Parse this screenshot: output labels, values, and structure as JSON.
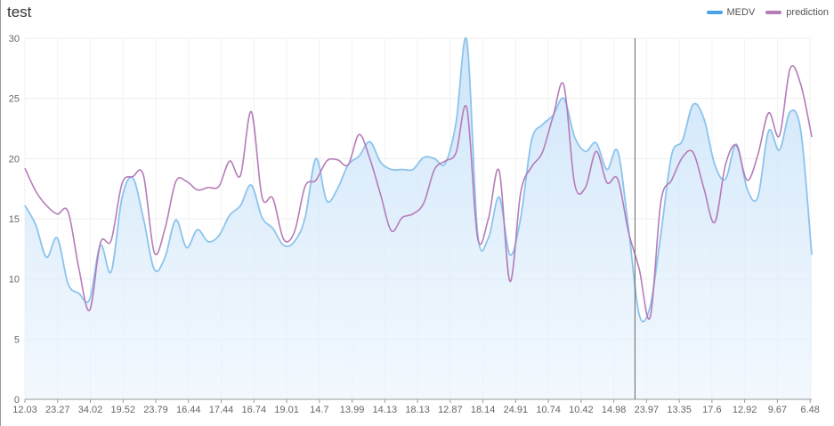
{
  "chart_data": {
    "type": "area",
    "title": "test",
    "xlabel": "",
    "ylabel": "",
    "ylim": [
      0,
      30
    ],
    "yticks": [
      0,
      5,
      10,
      15,
      20,
      25,
      30
    ],
    "grid": true,
    "legend": "top-right",
    "x_tick_labels": [
      "12.03",
      "23.27",
      "34.02",
      "19.52",
      "23.79",
      "16.44",
      "17.44",
      "16.74",
      "19.01",
      "14.7",
      "13.99",
      "14.13",
      "18.13",
      "12.87",
      "18.14",
      "24.91",
      "10.74",
      "10.42",
      "14.98",
      "23.97",
      "13.35",
      "17.6",
      "12.92",
      "9.67",
      "6.48"
    ],
    "colors": {
      "medv": "#4aa3e8",
      "medv_line": "#8cc4ec",
      "medv_fill": "#d6ebfb",
      "prediction": "#b47cb8"
    },
    "series": [
      {
        "name": "MEDV",
        "values": [
          16.1,
          14.5,
          11.8,
          13.4,
          9.6,
          8.8,
          8.3,
          12.8,
          10.6,
          16.7,
          18.4,
          15.0,
          10.8,
          11.8,
          14.9,
          12.6,
          14.1,
          13.1,
          13.6,
          15.3,
          16.1,
          17.8,
          15.1,
          14.2,
          12.8,
          13.1,
          15.1,
          20.0,
          16.5,
          17.5,
          19.5,
          20.2,
          21.4,
          19.7,
          19.1,
          19.1,
          19.1,
          20.1,
          20.0,
          19.6,
          23.0,
          29.8,
          13.8,
          13.4,
          16.8,
          12.0,
          15.1,
          21.5,
          22.8,
          23.6,
          25.0,
          21.8,
          20.6,
          21.3,
          19.1,
          20.6,
          14.2,
          7.0,
          7.7,
          13.7,
          20.3,
          21.5,
          24.5,
          23.3,
          19.5,
          18.3,
          21.2,
          17.5,
          16.8,
          22.3,
          20.7,
          23.9,
          22.2,
          12.0
        ]
      },
      {
        "name": "prediction",
        "values": [
          19.2,
          17.3,
          16.1,
          15.4,
          15.6,
          10.9,
          7.4,
          13.0,
          13.2,
          17.9,
          18.5,
          18.6,
          12.2,
          14.2,
          18.1,
          18.1,
          17.4,
          17.6,
          17.7,
          19.8,
          18.6,
          23.9,
          16.8,
          16.7,
          13.3,
          13.9,
          17.7,
          18.2,
          19.8,
          19.9,
          19.5,
          22.0,
          20.0,
          17.0,
          14.0,
          15.1,
          15.4,
          16.3,
          19.1,
          19.8,
          20.5,
          24.2,
          13.4,
          15.0,
          19.0,
          9.8,
          17.2,
          19.3,
          20.5,
          23.5,
          26.1,
          17.9,
          17.6,
          20.6,
          18.0,
          18.3,
          13.9,
          10.8,
          6.8,
          16.4,
          18.2,
          20.1,
          20.5,
          17.5,
          14.7,
          19.5,
          21.1,
          18.2,
          20.3,
          23.8,
          21.9,
          27.5,
          26.1,
          21.8
        ]
      }
    ]
  }
}
